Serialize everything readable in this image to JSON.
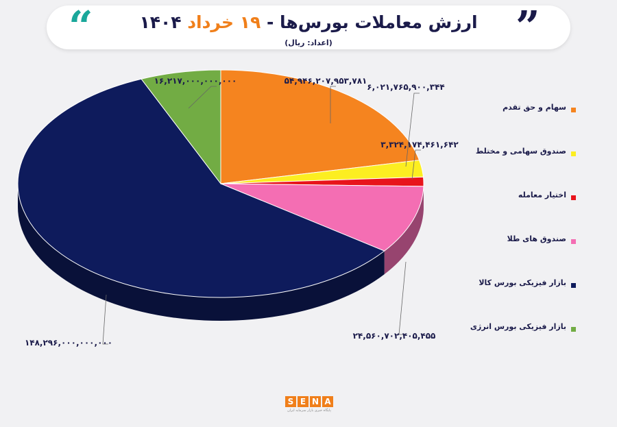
{
  "header": {
    "title_pre": "ارزش معاملات بورس‌ها -",
    "title_day": "۱۹ خرداد",
    "title_year": "۱۴۰۴",
    "subtitle": "(اعداد: ریال)"
  },
  "logo": {
    "letters": [
      "S",
      "E",
      "N",
      "A"
    ],
    "tagline": "پایگاه خبری بازار سرمایه ایران"
  },
  "colors": {
    "accent_orange": "#f07f1a",
    "accent_teal": "#1aa79a",
    "title_navy": "#1b1b4a"
  },
  "chart_data": {
    "type": "pie",
    "title": "ارزش معاملات بورس‌ها - ۱۹ خرداد ۱۴۰۴",
    "unit": "(اعداد: ریال)",
    "legend_position": "right",
    "slices": [
      {
        "name": "سهام و حق تقدم",
        "value": 54946207953781,
        "label": "۵۴,۹۴۶,۲۰۷,۹۵۳,۷۸۱",
        "color": "#f5841f"
      },
      {
        "name": "صندوق سهامی و مختلط",
        "value": 6021765900344,
        "label": "۶,۰۲۱,۷۶۵,۹۰۰,۳۴۴",
        "color": "#fcee21"
      },
      {
        "name": "اختیار معامله",
        "value": 3324174461642,
        "label": "۳,۳۲۴,۱۷۴,۴۶۱,۶۴۲",
        "color": "#e8141b"
      },
      {
        "name": "صندوق های طلا",
        "value": 24560702405455,
        "label": "۲۴,۵۶۰,۷۰۲,۴۰۵,۴۵۵",
        "color": "#f46eb3"
      },
      {
        "name": "بازار فیزیکی بورس کالا",
        "value": 148296000000000,
        "label": "۱۴۸,۲۹۶,۰۰۰,۰۰۰,۰۰۰",
        "color": "#0e1b5c"
      },
      {
        "name": "بازار فیزیکی بورس انرژی",
        "value": 16217000000000,
        "label": "۱۶,۲۱۷,۰۰۰,۰۰۰,۰۰۰",
        "color": "#72ac44"
      }
    ]
  }
}
